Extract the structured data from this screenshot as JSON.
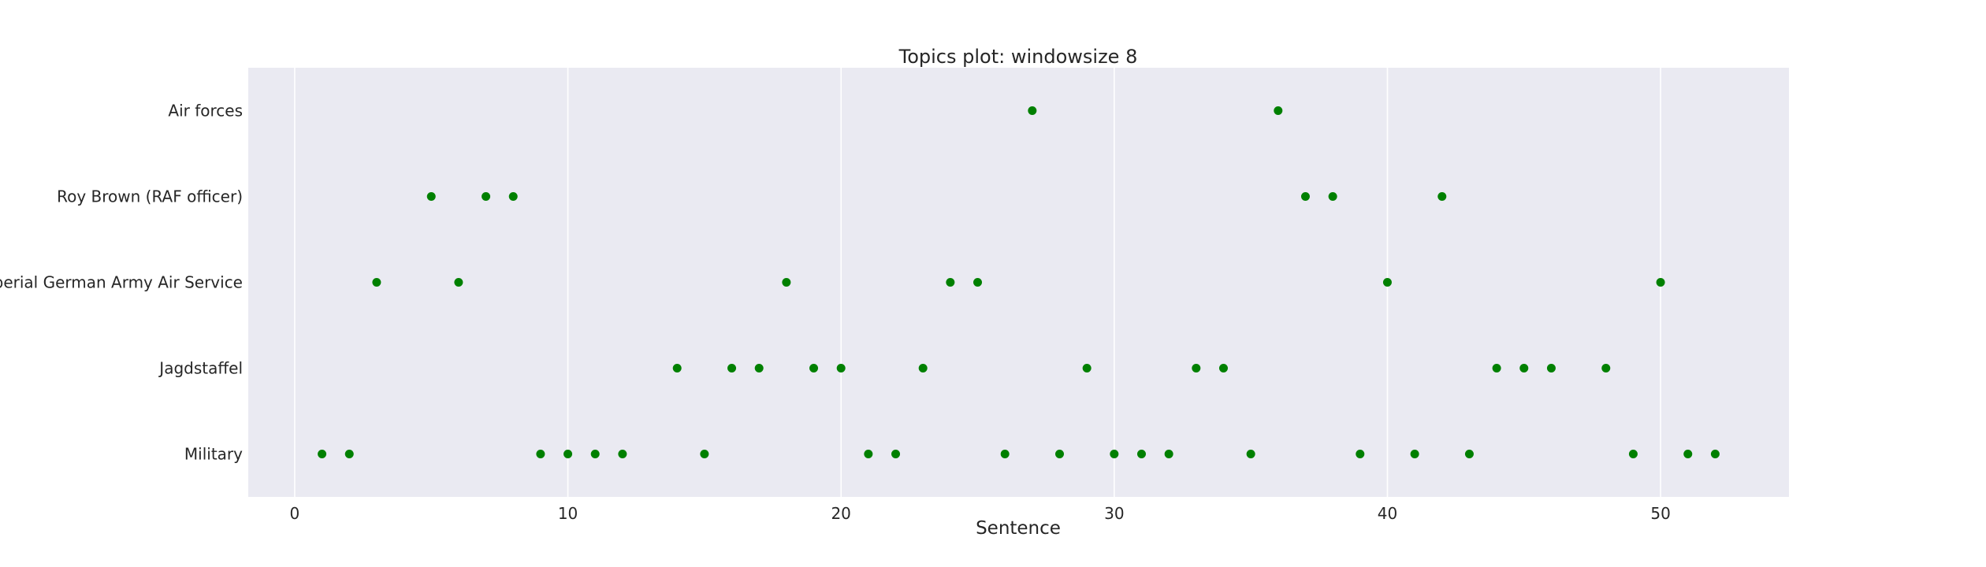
{
  "chart_data": {
    "type": "scatter",
    "title": "Topics plot: windowsize 8",
    "xlabel": "Sentence",
    "ylabel": "",
    "xlim": [
      -1.7,
      54.7
    ],
    "xticks": [
      0,
      10,
      20,
      30,
      40,
      50
    ],
    "categories": [
      "Military",
      "Jagdstaffel",
      "Imperial German Army Air Service",
      "Roy Brown (RAF officer)",
      "Air forces"
    ],
    "grid": "vertical",
    "background": "#eaeaf2",
    "marker_color": "#008000",
    "points": [
      {
        "x": 1,
        "category": "Military"
      },
      {
        "x": 2,
        "category": "Military"
      },
      {
        "x": 9,
        "category": "Military"
      },
      {
        "x": 10,
        "category": "Military"
      },
      {
        "x": 11,
        "category": "Military"
      },
      {
        "x": 12,
        "category": "Military"
      },
      {
        "x": 15,
        "category": "Military"
      },
      {
        "x": 21,
        "category": "Military"
      },
      {
        "x": 22,
        "category": "Military"
      },
      {
        "x": 26,
        "category": "Military"
      },
      {
        "x": 28,
        "category": "Military"
      },
      {
        "x": 30,
        "category": "Military"
      },
      {
        "x": 31,
        "category": "Military"
      },
      {
        "x": 32,
        "category": "Military"
      },
      {
        "x": 35,
        "category": "Military"
      },
      {
        "x": 39,
        "category": "Military"
      },
      {
        "x": 41,
        "category": "Military"
      },
      {
        "x": 43,
        "category": "Military"
      },
      {
        "x": 49,
        "category": "Military"
      },
      {
        "x": 51,
        "category": "Military"
      },
      {
        "x": 52,
        "category": "Military"
      },
      {
        "x": 14,
        "category": "Jagdstaffel"
      },
      {
        "x": 16,
        "category": "Jagdstaffel"
      },
      {
        "x": 17,
        "category": "Jagdstaffel"
      },
      {
        "x": 19,
        "category": "Jagdstaffel"
      },
      {
        "x": 20,
        "category": "Jagdstaffel"
      },
      {
        "x": 23,
        "category": "Jagdstaffel"
      },
      {
        "x": 29,
        "category": "Jagdstaffel"
      },
      {
        "x": 33,
        "category": "Jagdstaffel"
      },
      {
        "x": 34,
        "category": "Jagdstaffel"
      },
      {
        "x": 44,
        "category": "Jagdstaffel"
      },
      {
        "x": 45,
        "category": "Jagdstaffel"
      },
      {
        "x": 46,
        "category": "Jagdstaffel"
      },
      {
        "x": 48,
        "category": "Jagdstaffel"
      },
      {
        "x": 3,
        "category": "Imperial German Army Air Service"
      },
      {
        "x": 6,
        "category": "Imperial German Army Air Service"
      },
      {
        "x": 18,
        "category": "Imperial German Army Air Service"
      },
      {
        "x": 24,
        "category": "Imperial German Army Air Service"
      },
      {
        "x": 25,
        "category": "Imperial German Army Air Service"
      },
      {
        "x": 40,
        "category": "Imperial German Army Air Service"
      },
      {
        "x": 50,
        "category": "Imperial German Army Air Service"
      },
      {
        "x": 5,
        "category": "Roy Brown (RAF officer)"
      },
      {
        "x": 7,
        "category": "Roy Brown (RAF officer)"
      },
      {
        "x": 8,
        "category": "Roy Brown (RAF officer)"
      },
      {
        "x": 37,
        "category": "Roy Brown (RAF officer)"
      },
      {
        "x": 38,
        "category": "Roy Brown (RAF officer)"
      },
      {
        "x": 42,
        "category": "Roy Brown (RAF officer)"
      },
      {
        "x": 27,
        "category": "Air forces"
      },
      {
        "x": 36,
        "category": "Air forces"
      }
    ]
  }
}
